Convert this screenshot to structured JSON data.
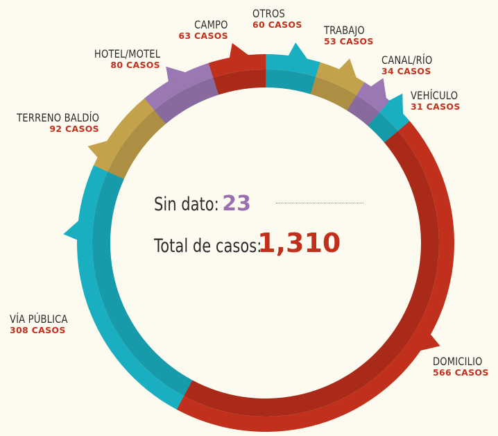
{
  "center": {
    "sin_dato_label": "Sin dato:",
    "sin_dato_value": "23",
    "total_label": "Total de casos:",
    "total_value": "1,310"
  },
  "colors": {
    "background": "#fdfbf0",
    "red": "#c0301c",
    "teal": "#1aafc0",
    "gold": "#c4a24c",
    "purple": "#9a78b4",
    "label_dark": "#2b2b2b"
  },
  "chart_data": {
    "type": "pie",
    "subtype": "donut",
    "title": "",
    "total": 1310,
    "unlabeled": {
      "label": "Sin dato",
      "value": 23
    },
    "categories": [
      "OTROS",
      "TRABAJO",
      "CANAL/RÍO",
      "VEHÍCULO",
      "DOMICILIO",
      "VÍA PÚBLICA",
      "TERRENO BALDÍO",
      "HOTEL/MOTEL",
      "CAMPO"
    ],
    "values": [
      60,
      53,
      34,
      31,
      566,
      308,
      92,
      80,
      63
    ],
    "segments": [
      {
        "name": "OTROS",
        "value": 60,
        "count_label": "60 CASOS",
        "color": "#1aafc0"
      },
      {
        "name": "TRABAJO",
        "value": 53,
        "count_label": "53 CASOS",
        "color": "#c4a24c"
      },
      {
        "name": "CANAL/RÍO",
        "value": 34,
        "count_label": "34 CASOS",
        "color": "#9a78b4"
      },
      {
        "name": "VEHÍCULO",
        "value": 31,
        "count_label": "31 CASOS",
        "color": "#1aafc0"
      },
      {
        "name": "DOMICILIO",
        "value": 566,
        "count_label": "566 CASOS",
        "color": "#c0301c"
      },
      {
        "name": "VÍA PÚBLICA",
        "value": 308,
        "count_label": "308 CASOS",
        "color": "#1aafc0"
      },
      {
        "name": "TERRENO BALDÍO",
        "value": 92,
        "count_label": "92 CASOS",
        "color": "#c4a24c"
      },
      {
        "name": "HOTEL/MOTEL",
        "value": 80,
        "count_label": "80 CASOS",
        "color": "#9a78b4"
      },
      {
        "name": "CAMPO",
        "value": 63,
        "count_label": "63 CASOS",
        "color": "#c0301c"
      }
    ],
    "start_angle_deg": 0,
    "direction": "clockwise",
    "legend": "callout labels around ring"
  }
}
